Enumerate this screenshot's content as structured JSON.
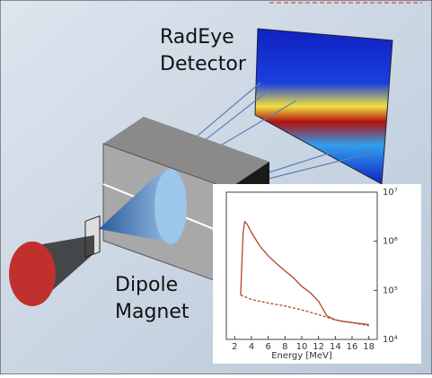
{
  "labels": {
    "detector": [
      "RadEye",
      "Detector"
    ],
    "magnet": [
      "Dipole",
      "Magnet"
    ]
  },
  "chart_data": {
    "type": "line",
    "x_label": "Energy [MeV]",
    "xlim": [
      1,
      19
    ],
    "xticks": [
      2,
      4,
      6,
      8,
      10,
      12,
      14,
      16,
      18
    ],
    "ylim": [
      10000,
      10000000
    ],
    "log_y": true,
    "yticks": [
      {
        "value": 10000,
        "label": "10⁴"
      },
      {
        "value": 100000,
        "label": "10⁵"
      },
      {
        "value": 1000000,
        "label": "10⁶"
      },
      {
        "value": 10000000,
        "label": "10⁷"
      }
    ],
    "series": [
      {
        "style": "solid",
        "color": "#b5452a",
        "x": [
          2.7,
          3.0,
          3.2,
          3.5,
          4,
          5,
          6,
          7,
          8,
          9,
          10,
          11,
          12,
          13,
          14,
          15,
          16,
          17,
          18
        ],
        "values": [
          80000,
          1500000,
          2500000,
          2200000,
          1500000,
          800000,
          500000,
          350000,
          250000,
          180000,
          120000,
          90000,
          60000,
          30000,
          25000,
          23000,
          22000,
          21000,
          20000
        ]
      },
      {
        "style": "dashed",
        "color": "#b5452a",
        "x": [
          2.7,
          4,
          6,
          8,
          10,
          12,
          14,
          16,
          18
        ],
        "values": [
          80000,
          65000,
          55000,
          48000,
          40000,
          32000,
          25000,
          22000,
          19000
        ]
      }
    ]
  }
}
